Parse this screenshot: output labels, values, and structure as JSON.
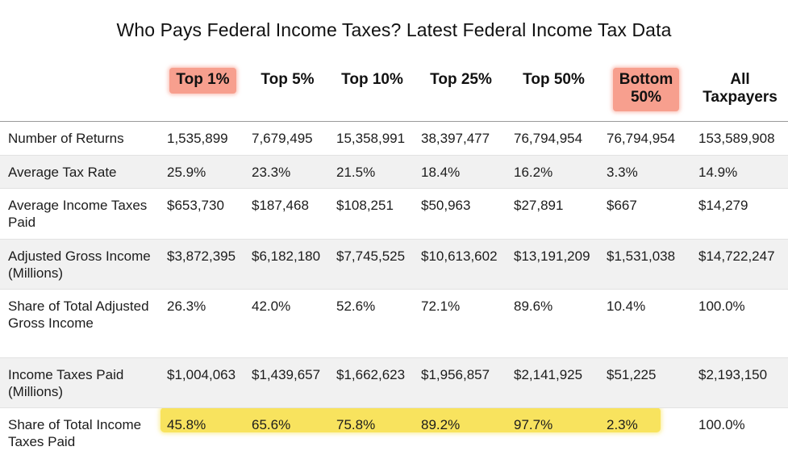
{
  "title": "Who Pays Federal Income Taxes? Latest Federal Income Tax Data",
  "headers": [
    {
      "line1": "Top 1%",
      "line2": "",
      "highlight": true
    },
    {
      "line1": "Top 5%",
      "line2": "",
      "highlight": false
    },
    {
      "line1": "Top 10%",
      "line2": "",
      "highlight": false
    },
    {
      "line1": "Top 25%",
      "line2": "",
      "highlight": false
    },
    {
      "line1": "Top 50%",
      "line2": "",
      "highlight": false
    },
    {
      "line1": "Bottom",
      "line2": "50%",
      "highlight": true
    },
    {
      "line1": "All",
      "line2": "Taxpayers",
      "highlight": false
    }
  ],
  "rows": [
    {
      "label": "Number of Returns",
      "values": [
        "1,535,899",
        "7,679,495",
        "15,358,991",
        "38,397,477",
        "76,794,954",
        "76,794,954",
        "153,589,908"
      ]
    },
    {
      "label": "Average Tax Rate",
      "values": [
        "25.9%",
        "23.3%",
        "21.5%",
        "18.4%",
        "16.2%",
        "3.3%",
        "14.9%"
      ]
    },
    {
      "label": "Average Income Taxes Paid",
      "values": [
        "$653,730",
        "$187,468",
        "$108,251",
        "$50,963",
        "$27,891",
        "$667",
        "$14,279"
      ]
    },
    {
      "label": "Adjusted Gross Income (Millions)",
      "values": [
        "$3,872,395",
        "$6,182,180",
        "$7,745,525",
        "$10,613,602",
        "$13,191,209",
        "$1,531,038",
        "$14,722,247"
      ]
    },
    {
      "label": "Share of Total Adjusted Gross Income",
      "values": [
        "26.3%",
        "42.0%",
        "52.6%",
        "72.1%",
        "89.6%",
        "10.4%",
        "100.0%"
      ]
    },
    {
      "label": "Income Taxes Paid (Millions)",
      "values": [
        "$1,004,063",
        "$1,439,657",
        "$1,662,623",
        "$1,956,857",
        "$2,141,925",
        "$51,225",
        "$2,193,150"
      ]
    },
    {
      "label": "Share of Total Income Taxes Paid",
      "values": [
        "45.8%",
        "65.6%",
        "75.8%",
        "89.2%",
        "97.7%",
        "2.3%",
        "100.0%"
      ]
    }
  ],
  "colors": {
    "header_highlight": "#f79f8e",
    "row_highlight": "#f8e35e",
    "row_shade": "#f1f1f1"
  }
}
